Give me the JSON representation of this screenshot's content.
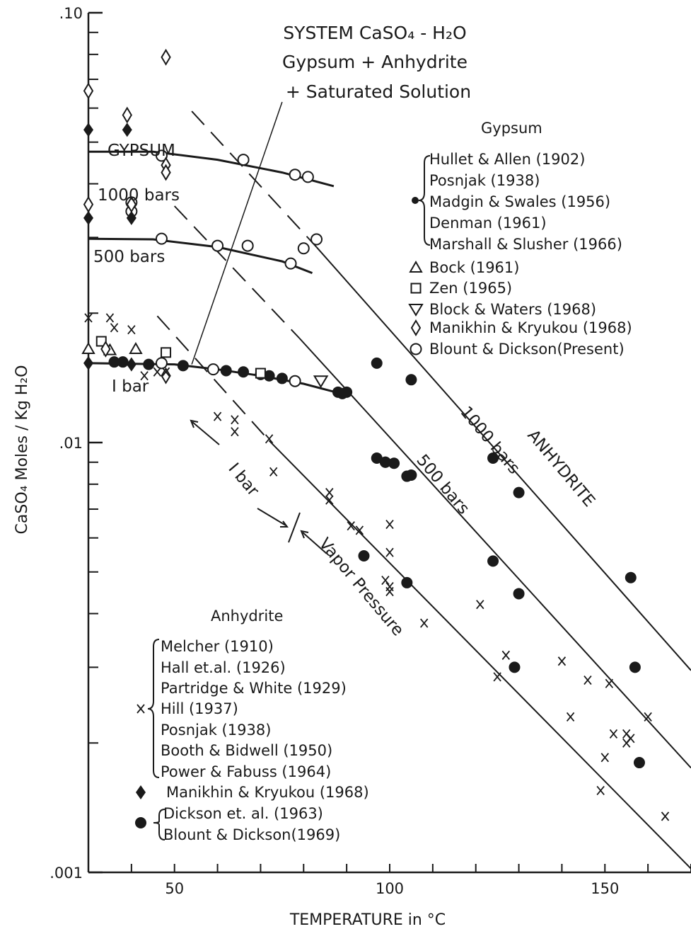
{
  "chart_data": {
    "type": "scatter",
    "title_lines": [
      "SYSTEM  CaSO₄ - H₂O",
      "Gypsum + Anhydrite",
      "+ Saturated Solution"
    ],
    "xlabel": "TEMPERATURE in °C",
    "ylabel": "CaSO₄  Moles / Kg  H₂O",
    "x_scale": "linear",
    "y_scale": "log",
    "xlim": [
      30,
      170
    ],
    "ylim": [
      0.001,
      0.1
    ],
    "x_ticks": [
      {
        "value": 50,
        "label": "50"
      },
      {
        "value": 100,
        "label": "100"
      },
      {
        "value": 150,
        "label": "150"
      }
    ],
    "y_ticks": [
      {
        "value": 0.1,
        "label": ".10"
      },
      {
        "value": 0.01,
        "label": ".01"
      },
      {
        "value": 0.001,
        "label": ".001"
      }
    ],
    "grid": false,
    "legend_gypsum": {
      "title": "Gypsum",
      "bracket_marker": "filled-circle",
      "bracket_entries": [
        "Hullet & Allen (1902)",
        "Posnjak (1938)",
        "Madgin & Swales (1956)",
        "Denman (1961)",
        "Marshall & Slusher (1966)"
      ],
      "entries": [
        {
          "marker": "triangle",
          "label": "Bock (1961)"
        },
        {
          "marker": "square",
          "label": "Zen (1965)"
        },
        {
          "marker": "triangle-down",
          "label": "Block & Waters (1968)"
        },
        {
          "marker": "diamond",
          "label": "Manikhin & Kryukou (1968)"
        },
        {
          "marker": "open-circle",
          "label": "Blount & Dickson(Present)"
        }
      ]
    },
    "legend_anhydrite": {
      "title": "Anhydrite",
      "x_entries": [
        "Melcher (1910)",
        "Hall et.al. (1926)",
        "Partridge & White (1929)",
        "Hill (1937)",
        "Posnjak (1938)",
        "Booth & Bidwell (1950)",
        "Power & Fabuss (1964)"
      ],
      "diamond_entry": "Manikhin & Kryukou (1968)",
      "dot_entries": [
        "Dickson et. al. (1963)",
        "Blount & Dickson(1969)"
      ]
    },
    "curve_labels": {
      "gypsum": "GYPSUM",
      "gypsum_1000": "1000 bars",
      "gypsum_500": "500 bars",
      "gypsum_1": "I bar",
      "anhydrite": "ANHYDRITE",
      "anh_1000": "1000 bars",
      "anh_500": "500 bars",
      "anh_1": "I bar",
      "vapor": "Vapor Pressure"
    },
    "series": [
      {
        "name": "gypsum 1000 bars",
        "kind": "curve",
        "style": "solid",
        "points": [
          [
            30,
            0.0475
          ],
          [
            45,
            0.0475
          ],
          [
            60,
            0.0455
          ],
          [
            75,
            0.0425
          ],
          [
            87,
            0.0395
          ]
        ]
      },
      {
        "name": "gypsum 500 bars",
        "kind": "curve",
        "style": "solid",
        "points": [
          [
            30,
            0.0298
          ],
          [
            45,
            0.0297
          ],
          [
            60,
            0.0285
          ],
          [
            75,
            0.0264
          ],
          [
            82,
            0.0248
          ]
        ]
      },
      {
        "name": "gypsum 1 bar",
        "kind": "curve",
        "style": "solid",
        "points": [
          [
            30,
            0.0153
          ],
          [
            50,
            0.0152
          ],
          [
            60,
            0.0148
          ],
          [
            70,
            0.0143
          ],
          [
            80,
            0.0137
          ],
          [
            90,
            0.0129
          ]
        ]
      },
      {
        "name": "anhydrite 1000 bars",
        "kind": "line",
        "style": "solid",
        "points": [
          [
            83,
            0.0285
          ],
          [
            170,
            0.00295
          ]
        ]
      },
      {
        "name": "anhydrite 500 bars",
        "kind": "line",
        "style": "solid",
        "points": [
          [
            79,
            0.0175
          ],
          [
            170,
            0.00175
          ]
        ]
      },
      {
        "name": "anhydrite 1 bar",
        "kind": "line",
        "style": "solid",
        "points": [
          [
            72,
            0.0101
          ],
          [
            170,
            0.00102
          ]
        ]
      },
      {
        "name": "anhydrite 1000 bars metastable",
        "kind": "line",
        "style": "dashed",
        "points": [
          [
            54,
            0.059
          ],
          [
            83,
            0.0285
          ]
        ]
      },
      {
        "name": "anhydrite 500 bars metastable",
        "kind": "line",
        "style": "dashed",
        "points": [
          [
            50,
            0.0355
          ],
          [
            79,
            0.0175
          ]
        ]
      },
      {
        "name": "anhydrite 1 bar metastable",
        "kind": "line",
        "style": "dashed",
        "points": [
          [
            46,
            0.0197
          ],
          [
            72,
            0.0101
          ]
        ]
      },
      {
        "name": "invariant line",
        "kind": "line",
        "style": "solid",
        "points": [
          [
            54,
            0.0152
          ],
          [
            75,
            0.062
          ]
        ]
      },
      {
        "name": "Blount & Dickson (Present)",
        "marker": "open-circle",
        "points": [
          [
            47,
            0.0465
          ],
          [
            66,
            0.0455
          ],
          [
            78,
            0.042
          ],
          [
            81,
            0.0415
          ],
          [
            47,
            0.0298
          ],
          [
            60,
            0.0287
          ],
          [
            67,
            0.0287
          ],
          [
            80,
            0.0283
          ],
          [
            83,
            0.0297
          ],
          [
            77,
            0.0261
          ],
          [
            47,
            0.0153
          ],
          [
            59,
            0.0148
          ],
          [
            78,
            0.0139
          ],
          [
            40,
            0.0362
          ],
          [
            40,
            0.0345
          ]
        ]
      },
      {
        "name": "Gypsum filled circles",
        "marker": "filled-circle",
        "points": [
          [
            36,
            0.0154
          ],
          [
            38,
            0.0154
          ],
          [
            44,
            0.0152
          ],
          [
            52,
            0.0151
          ],
          [
            62,
            0.0147
          ],
          [
            66,
            0.0146
          ],
          [
            70,
            0.0144
          ],
          [
            72,
            0.0143
          ],
          [
            75,
            0.0141
          ],
          [
            88,
            0.0131
          ],
          [
            89,
            0.013
          ],
          [
            90,
            0.0131
          ]
        ]
      },
      {
        "name": "Bock (1961)",
        "marker": "triangle",
        "points": [
          [
            30,
            0.0165
          ],
          [
            35,
            0.0164
          ],
          [
            41,
            0.0165
          ]
        ]
      },
      {
        "name": "Zen (1965)",
        "marker": "square",
        "points": [
          [
            33,
            0.0172
          ],
          [
            48,
            0.0162
          ],
          [
            70,
            0.0145
          ]
        ]
      },
      {
        "name": "Block & Waters (1968)",
        "marker": "triangle-down",
        "points": [
          [
            84,
            0.0139
          ]
        ]
      },
      {
        "name": "Manikhin & Kryukou (1968) gypsum",
        "marker": "diamond",
        "points": [
          [
            30,
            0.0658
          ],
          [
            48,
            0.0788
          ],
          [
            39,
            0.0578
          ],
          [
            30,
            0.0358
          ],
          [
            40,
            0.0358
          ],
          [
            48,
            0.0442
          ],
          [
            48,
            0.0425
          ],
          [
            34,
            0.0165
          ],
          [
            48,
            0.0143
          ]
        ]
      },
      {
        "name": "Manikhin & Kryukou (1968) anhydrite",
        "marker": "filled-diamond",
        "points": [
          [
            30,
            0.0534
          ],
          [
            39,
            0.0534
          ],
          [
            30,
            0.0333
          ],
          [
            40,
            0.0333
          ],
          [
            30,
            0.0153
          ],
          [
            40,
            0.0152
          ]
        ]
      },
      {
        "name": "Dickson / Blount & Dickson anhydrite",
        "marker": "filled-circle",
        "points": [
          [
            97,
            0.0153
          ],
          [
            105,
            0.014
          ],
          [
            97,
            0.0092
          ],
          [
            99,
            0.009
          ],
          [
            101,
            0.00895
          ],
          [
            104,
            0.00835
          ],
          [
            105,
            0.0084
          ],
          [
            124,
            0.0092
          ],
          [
            130,
            0.00765
          ],
          [
            99,
            0.009
          ],
          [
            124,
            0.0053
          ],
          [
            130,
            0.00445
          ],
          [
            156,
            0.00485
          ],
          [
            94,
            0.00545
          ],
          [
            104,
            0.00472
          ],
          [
            129,
            0.003
          ],
          [
            157,
            0.003
          ],
          [
            158,
            0.0018
          ]
        ]
      },
      {
        "name": "Anhydrite x data",
        "marker": "x",
        "points": [
          [
            30,
            0.0195
          ],
          [
            35,
            0.0195
          ],
          [
            36,
            0.0185
          ],
          [
            40,
            0.0183
          ],
          [
            46,
            0.0146
          ],
          [
            48,
            0.0146
          ],
          [
            43,
            0.0143
          ],
          [
            60,
            0.0115
          ],
          [
            64,
            0.0113
          ],
          [
            64,
            0.0106
          ],
          [
            72,
            0.0102
          ],
          [
            73,
            0.00855
          ],
          [
            86,
            0.00765
          ],
          [
            86,
            0.00735
          ],
          [
            91,
            0.0064
          ],
          [
            93,
            0.00625
          ],
          [
            100,
            0.00645
          ],
          [
            100,
            0.00555
          ],
          [
            99,
            0.00478
          ],
          [
            100,
            0.00462
          ],
          [
            100,
            0.0045
          ],
          [
            108,
            0.0038
          ],
          [
            121,
            0.0042
          ],
          [
            127,
            0.0032
          ],
          [
            125,
            0.00285
          ],
          [
            140,
            0.0031
          ],
          [
            146,
            0.0028
          ],
          [
            151,
            0.00275
          ],
          [
            142,
            0.0023
          ],
          [
            152,
            0.0021
          ],
          [
            155,
            0.0021
          ],
          [
            155,
            0.002
          ],
          [
            156,
            0.00205
          ],
          [
            160,
            0.0023
          ],
          [
            150,
            0.00185
          ],
          [
            149,
            0.00155
          ],
          [
            164,
            0.00135
          ]
        ]
      }
    ]
  }
}
